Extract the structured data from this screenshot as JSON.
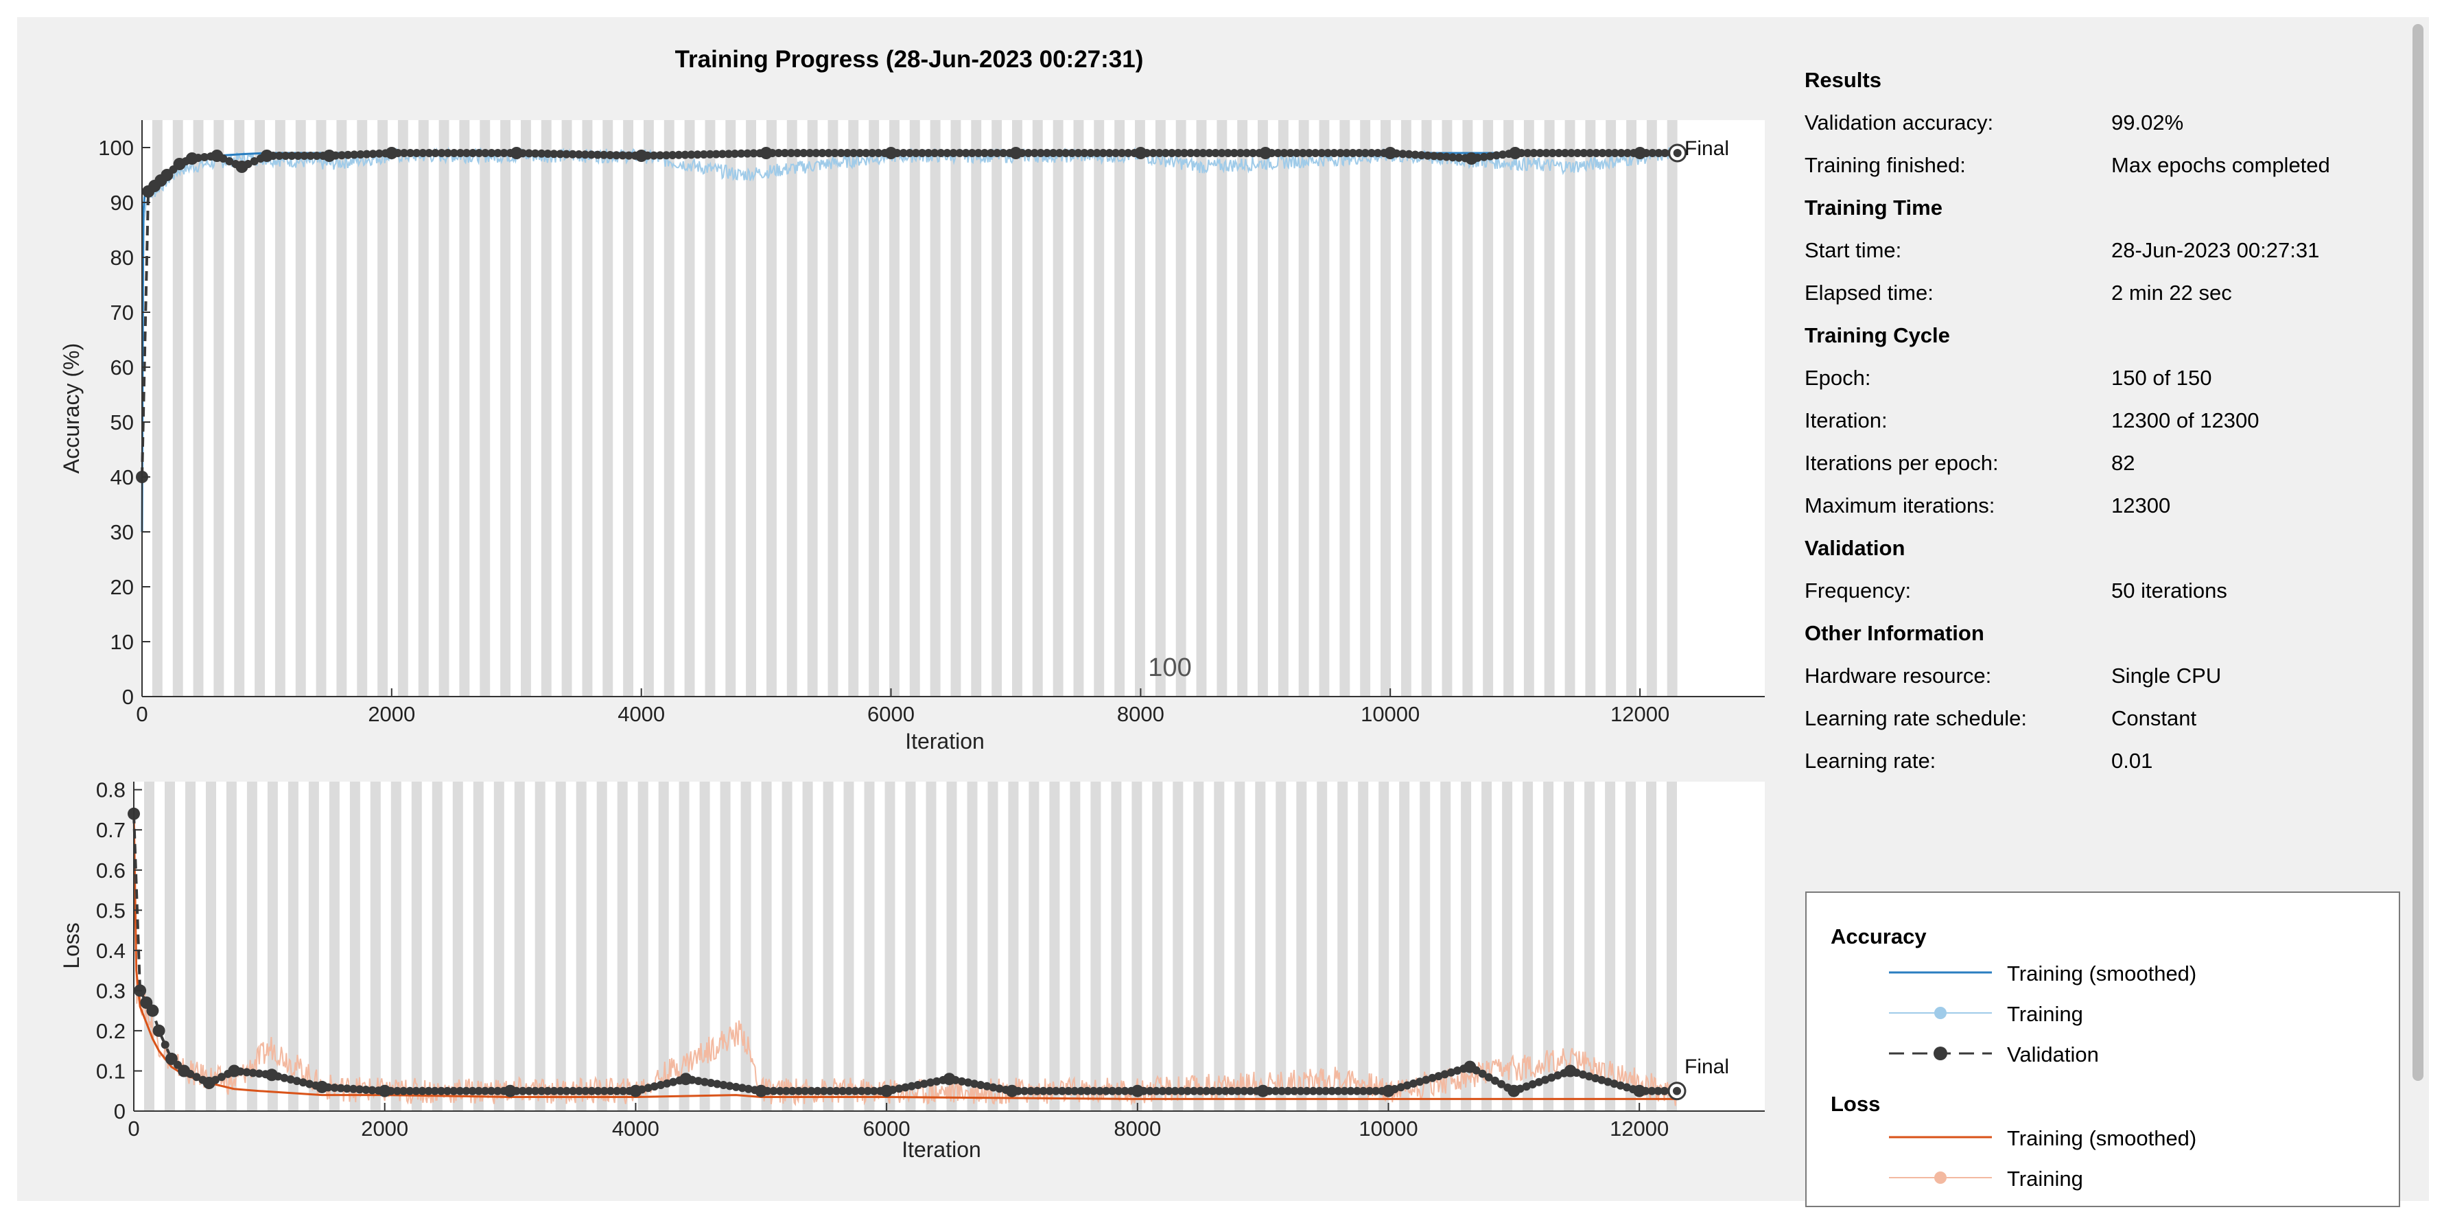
{
  "window": {
    "title": "Training Progress (28-Jun-2023 00:27:31)"
  },
  "accuracy_plot": {
    "ylabel": "Accuracy (%)",
    "xlabel": "Iteration",
    "overlay_text": "100",
    "final_label": "Final"
  },
  "loss_plot": {
    "ylabel": "Loss",
    "xlabel": "Iteration",
    "final_label": "Final"
  },
  "colors": {
    "accuracy_smoothed": "#2a7ec0",
    "accuracy_raw": "#9fcbe9",
    "loss_smoothed": "#d95319",
    "loss_raw": "#f3b9a0",
    "validation": "#3a3a3a",
    "epoch_band": "#dcdcdc",
    "plot_bg": "#ffffff"
  },
  "chart_data": [
    {
      "type": "line",
      "title": "Training Progress (28-Jun-2023 00:27:31)",
      "xlabel": "Iteration",
      "ylabel": "Accuracy (%)",
      "xlim": [
        0,
        13000
      ],
      "ylim": [
        0,
        105
      ],
      "xticks": [
        0,
        2000,
        4000,
        6000,
        8000,
        10000,
        12000
      ],
      "yticks": [
        0,
        10,
        20,
        30,
        40,
        50,
        60,
        70,
        80,
        90,
        100
      ],
      "x_data_end": 12300,
      "epoch_length": 82,
      "series": [
        {
          "name": "Training (smoothed)",
          "x": [
            0,
            10,
            20,
            40,
            60,
            100,
            150,
            200,
            300,
            400,
            600,
            800,
            1000,
            1500,
            2000,
            3000,
            4000,
            4800,
            5000,
            6000,
            8000,
            8500,
            10000,
            12000,
            12300
          ],
          "values": [
            30,
            88,
            91,
            92,
            92,
            93,
            94,
            95,
            97,
            98,
            98.5,
            98.8,
            99,
            99,
            99,
            99,
            99,
            98.5,
            99,
            99,
            99,
            99,
            99,
            99,
            99
          ]
        },
        {
          "name": "Training",
          "x": [
            0,
            10,
            30,
            60,
            100,
            200,
            300,
            500,
            800,
            1000,
            1500,
            2000,
            4000,
            4800,
            6000,
            8000,
            8500,
            10000,
            11450,
            12300
          ],
          "values": [
            30,
            86,
            90,
            91,
            92,
            94,
            96,
            97,
            98,
            98,
            97,
            98.5,
            98.5,
            95,
            98.5,
            98.5,
            96.5,
            98.5,
            96.5,
            99
          ]
        },
        {
          "name": "Validation",
          "x": [
            0,
            50,
            100,
            150,
            200,
            300,
            400,
            600,
            800,
            1000,
            1500,
            2000,
            3000,
            4000,
            5000,
            6000,
            7000,
            8000,
            9000,
            10000,
            10650,
            11000,
            12000,
            12300
          ],
          "values": [
            40,
            92,
            93,
            94,
            95,
            97,
            98,
            98.5,
            96.5,
            98.5,
            98.5,
            99,
            99,
            98.5,
            99,
            99,
            99,
            99,
            99,
            99,
            98,
            99,
            99,
            99
          ]
        }
      ]
    },
    {
      "type": "line",
      "xlabel": "Iteration",
      "ylabel": "Loss",
      "xlim": [
        0,
        13000
      ],
      "ylim": [
        0,
        0.82
      ],
      "xticks": [
        0,
        2000,
        4000,
        6000,
        8000,
        10000,
        12000
      ],
      "yticks": [
        0,
        0.1,
        0.2,
        0.3,
        0.4,
        0.5,
        0.6,
        0.7,
        0.8
      ],
      "x_data_end": 12300,
      "epoch_length": 82,
      "series": [
        {
          "name": "Training (smoothed)",
          "x": [
            0,
            20,
            50,
            100,
            150,
            200,
            300,
            400,
            600,
            800,
            1000,
            1500,
            2000,
            3000,
            4000,
            4800,
            5000,
            6000,
            8000,
            10000,
            12000,
            12300
          ],
          "values": [
            0.75,
            0.35,
            0.26,
            0.22,
            0.18,
            0.15,
            0.11,
            0.09,
            0.07,
            0.055,
            0.05,
            0.04,
            0.04,
            0.035,
            0.035,
            0.04,
            0.035,
            0.035,
            0.03,
            0.03,
            0.03,
            0.03
          ]
        },
        {
          "name": "Training",
          "x": [
            0,
            20,
            50,
            100,
            200,
            300,
            500,
            800,
            1100,
            1500,
            2000,
            3000,
            4000,
            4850,
            5000,
            6000,
            8000,
            9700,
            10000,
            11450,
            12300
          ],
          "values": [
            0.75,
            0.3,
            0.28,
            0.25,
            0.17,
            0.12,
            0.09,
            0.07,
            0.16,
            0.06,
            0.05,
            0.05,
            0.05,
            0.2,
            0.05,
            0.05,
            0.05,
            0.08,
            0.05,
            0.13,
            0.04
          ]
        },
        {
          "name": "Validation",
          "x": [
            0,
            50,
            100,
            150,
            200,
            300,
            400,
            600,
            800,
            1100,
            1500,
            2000,
            3000,
            4000,
            4400,
            5000,
            6000,
            6500,
            7000,
            8000,
            9000,
            10000,
            10650,
            11000,
            11450,
            12000,
            12300
          ],
          "values": [
            0.74,
            0.3,
            0.27,
            0.25,
            0.2,
            0.13,
            0.1,
            0.07,
            0.1,
            0.09,
            0.06,
            0.05,
            0.05,
            0.05,
            0.08,
            0.05,
            0.05,
            0.08,
            0.05,
            0.05,
            0.05,
            0.05,
            0.11,
            0.05,
            0.1,
            0.05,
            0.05
          ]
        }
      ]
    }
  ],
  "info_panel": {
    "sections": [
      {
        "heading": "Results",
        "rows": [
          {
            "label": "Validation accuracy:",
            "value": "99.02%"
          },
          {
            "label": "Training finished:",
            "value": "Max epochs completed"
          }
        ]
      },
      {
        "heading": "Training Time",
        "rows": [
          {
            "label": "Start time:",
            "value": "28-Jun-2023 00:27:31"
          },
          {
            "label": "Elapsed time:",
            "value": "2 min 22 sec"
          }
        ]
      },
      {
        "heading": "Training Cycle",
        "rows": [
          {
            "label": "Epoch:",
            "value": "150 of 150"
          },
          {
            "label": "Iteration:",
            "value": "12300 of 12300"
          },
          {
            "label": "Iterations per epoch:",
            "value": "82"
          },
          {
            "label": "Maximum iterations:",
            "value": "12300"
          }
        ]
      },
      {
        "heading": "Validation",
        "rows": [
          {
            "label": "Frequency:",
            "value": "50 iterations"
          }
        ]
      },
      {
        "heading": "Other Information",
        "rows": [
          {
            "label": "Hardware resource:",
            "value": "Single CPU"
          },
          {
            "label": "Learning rate schedule:",
            "value": "Constant"
          },
          {
            "label": "Learning rate:",
            "value": "0.01"
          }
        ]
      }
    ]
  },
  "legend": {
    "accuracy_heading": "Accuracy",
    "loss_heading": "Loss",
    "accuracy_items": [
      {
        "label": "Training (smoothed)",
        "style": "smoothed"
      },
      {
        "label": "Training",
        "style": "raw"
      },
      {
        "label": "Validation",
        "style": "validation"
      }
    ],
    "loss_items": [
      {
        "label": "Training (smoothed)",
        "style": "smoothed"
      },
      {
        "label": "Training",
        "style": "raw"
      }
    ]
  }
}
